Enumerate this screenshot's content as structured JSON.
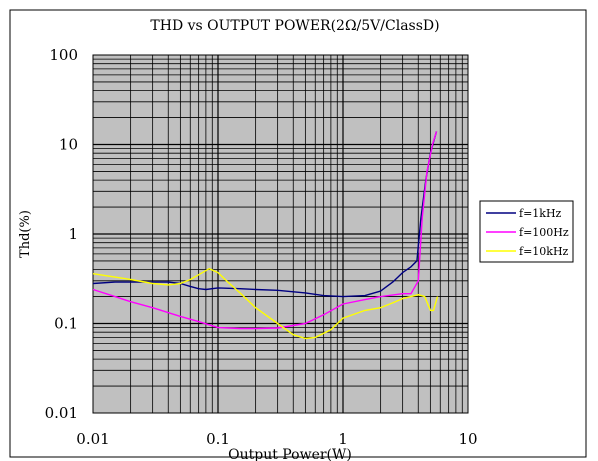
{
  "chart_data": {
    "type": "line",
    "title": "THD vs OUTPUT POWER(2Ω/5V/ClassD)",
    "xlabel": "Output Power(W)",
    "ylabel": "Thd(%)",
    "x_scale": "log",
    "y_scale": "log",
    "xlim": [
      0.01,
      10
    ],
    "ylim": [
      0.01,
      100
    ],
    "x_ticks": [
      "0.01",
      "0.1",
      "1",
      "10"
    ],
    "y_ticks": [
      "100",
      "10",
      "1",
      "0.1",
      "0.01"
    ],
    "grid": true,
    "plot_background": "#c0c0c0",
    "legend_position": "right",
    "series": [
      {
        "name": "f=1kHz",
        "color": "#000080",
        "points": [
          [
            0.01,
            0.28
          ],
          [
            0.015,
            0.29
          ],
          [
            0.02,
            0.29
          ],
          [
            0.03,
            0.29
          ],
          [
            0.04,
            0.29
          ],
          [
            0.05,
            0.28
          ],
          [
            0.06,
            0.26
          ],
          [
            0.07,
            0.245
          ],
          [
            0.08,
            0.24
          ],
          [
            0.1,
            0.25
          ],
          [
            0.15,
            0.245
          ],
          [
            0.2,
            0.24
          ],
          [
            0.3,
            0.235
          ],
          [
            0.5,
            0.22
          ],
          [
            0.7,
            0.205
          ],
          [
            1.0,
            0.2
          ],
          [
            1.5,
            0.205
          ],
          [
            2.0,
            0.23
          ],
          [
            2.5,
            0.29
          ],
          [
            3.0,
            0.37
          ],
          [
            3.5,
            0.43
          ],
          [
            3.9,
            0.5
          ],
          [
            4.2,
            1.5
          ],
          [
            4.6,
            4.0
          ],
          [
            5.0,
            8.0
          ],
          [
            5.6,
            14
          ]
        ]
      },
      {
        "name": "f=100Hz",
        "color": "#ff00ff",
        "points": [
          [
            0.01,
            0.24
          ],
          [
            0.015,
            0.2
          ],
          [
            0.02,
            0.175
          ],
          [
            0.03,
            0.15
          ],
          [
            0.05,
            0.12
          ],
          [
            0.07,
            0.105
          ],
          [
            0.1,
            0.09
          ],
          [
            0.15,
            0.088
          ],
          [
            0.2,
            0.088
          ],
          [
            0.3,
            0.089
          ],
          [
            0.5,
            0.1
          ],
          [
            0.7,
            0.125
          ],
          [
            1.0,
            0.165
          ],
          [
            1.5,
            0.185
          ],
          [
            2.0,
            0.2
          ],
          [
            3.0,
            0.215
          ],
          [
            3.5,
            0.215
          ],
          [
            4.0,
            0.3
          ],
          [
            4.3,
            1.5
          ],
          [
            4.7,
            5.0
          ],
          [
            5.2,
            10
          ],
          [
            5.6,
            14
          ]
        ]
      },
      {
        "name": "f=10kHz",
        "color": "#ffff00",
        "points": [
          [
            0.01,
            0.36
          ],
          [
            0.015,
            0.33
          ],
          [
            0.02,
            0.31
          ],
          [
            0.03,
            0.28
          ],
          [
            0.04,
            0.27
          ],
          [
            0.05,
            0.28
          ],
          [
            0.06,
            0.31
          ],
          [
            0.07,
            0.35
          ],
          [
            0.085,
            0.41
          ],
          [
            0.1,
            0.37
          ],
          [
            0.12,
            0.29
          ],
          [
            0.15,
            0.22
          ],
          [
            0.2,
            0.15
          ],
          [
            0.3,
            0.1
          ],
          [
            0.4,
            0.075
          ],
          [
            0.5,
            0.068
          ],
          [
            0.6,
            0.07
          ],
          [
            0.8,
            0.085
          ],
          [
            1.0,
            0.115
          ],
          [
            1.5,
            0.14
          ],
          [
            2.0,
            0.15
          ],
          [
            2.5,
            0.17
          ],
          [
            3.0,
            0.19
          ],
          [
            3.5,
            0.2
          ],
          [
            4.0,
            0.21
          ],
          [
            4.5,
            0.2
          ],
          [
            5.0,
            0.14
          ],
          [
            5.3,
            0.14
          ],
          [
            5.7,
            0.2
          ]
        ]
      }
    ]
  }
}
